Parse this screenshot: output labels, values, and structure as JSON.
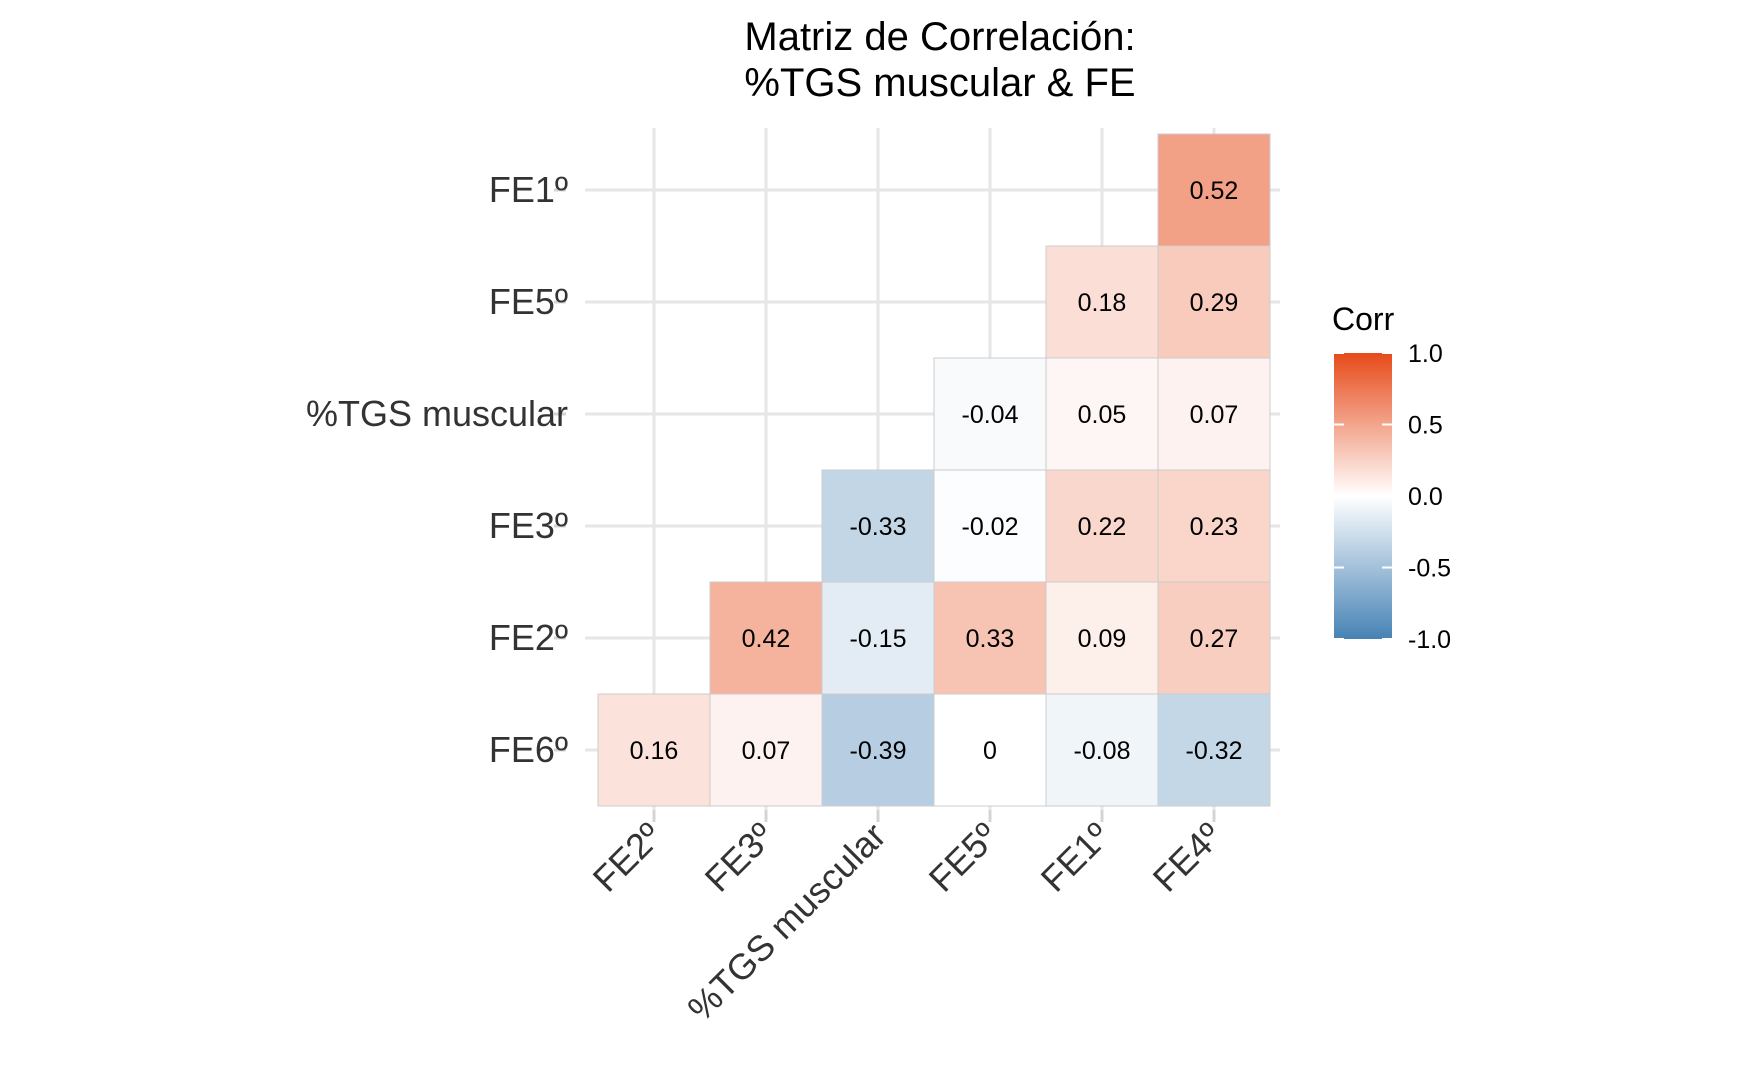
{
  "chart_data": {
    "type": "heatmap",
    "title_lines": [
      "Matriz de Correlación:",
      "%TGS muscular & FE"
    ],
    "x_categories": [
      "FE2º",
      "FE3º",
      "%TGS muscular",
      "FE5º",
      "FE1º",
      "FE4º"
    ],
    "y_categories": [
      "FE6º",
      "FE2º",
      "FE3º",
      "%TGS muscular",
      "FE5º",
      "FE1º"
    ],
    "cells": [
      {
        "x": "FE4º",
        "y": "FE1º",
        "value": 0.52,
        "label": "0.52"
      },
      {
        "x": "FE1º",
        "y": "FE5º",
        "value": 0.18,
        "label": "0.18"
      },
      {
        "x": "FE4º",
        "y": "FE5º",
        "value": 0.29,
        "label": "0.29"
      },
      {
        "x": "FE5º",
        "y": "%TGS muscular",
        "value": -0.04,
        "label": "-0.04"
      },
      {
        "x": "FE1º",
        "y": "%TGS muscular",
        "value": 0.05,
        "label": "0.05"
      },
      {
        "x": "FE4º",
        "y": "%TGS muscular",
        "value": 0.07,
        "label": "0.07"
      },
      {
        "x": "%TGS muscular",
        "y": "FE3º",
        "value": -0.33,
        "label": "-0.33"
      },
      {
        "x": "FE5º",
        "y": "FE3º",
        "value": -0.02,
        "label": "-0.02"
      },
      {
        "x": "FE1º",
        "y": "FE3º",
        "value": 0.22,
        "label": "0.22"
      },
      {
        "x": "FE4º",
        "y": "FE3º",
        "value": 0.23,
        "label": "0.23"
      },
      {
        "x": "FE3º",
        "y": "FE2º",
        "value": 0.42,
        "label": "0.42"
      },
      {
        "x": "%TGS muscular",
        "y": "FE2º",
        "value": -0.15,
        "label": "-0.15"
      },
      {
        "x": "FE5º",
        "y": "FE2º",
        "value": 0.33,
        "label": "0.33"
      },
      {
        "x": "FE1º",
        "y": "FE2º",
        "value": 0.09,
        "label": "0.09"
      },
      {
        "x": "FE4º",
        "y": "FE2º",
        "value": 0.27,
        "label": "0.27"
      },
      {
        "x": "FE2º",
        "y": "FE6º",
        "value": 0.16,
        "label": "0.16"
      },
      {
        "x": "FE3º",
        "y": "FE6º",
        "value": 0.07,
        "label": "0.07"
      },
      {
        "x": "%TGS muscular",
        "y": "FE6º",
        "value": -0.39,
        "label": "-0.39"
      },
      {
        "x": "FE5º",
        "y": "FE6º",
        "value": 0,
        "label": "0"
      },
      {
        "x": "FE1º",
        "y": "FE6º",
        "value": -0.08,
        "label": "-0.08"
      },
      {
        "x": "FE4º",
        "y": "FE6º",
        "value": -0.32,
        "label": "-0.32"
      }
    ],
    "color_scale": {
      "low": "#4682B4",
      "mid": "#FFFFFF",
      "high": "#E64A19",
      "limits": [
        -1,
        1
      ]
    },
    "legend": {
      "title": "Corr",
      "position": "right",
      "ticks": [
        {
          "value": 1,
          "label": "1.0"
        },
        {
          "value": 0.5,
          "label": "0.5"
        },
        {
          "value": 0,
          "label": "0.0"
        },
        {
          "value": -0.5,
          "label": "-0.5"
        },
        {
          "value": -1,
          "label": "-1.0"
        }
      ]
    },
    "grid": true,
    "cell_border_color": "#cccccc",
    "gridline_color": "#e6e6e6",
    "tick_mark_color": "#d4d4d4"
  }
}
